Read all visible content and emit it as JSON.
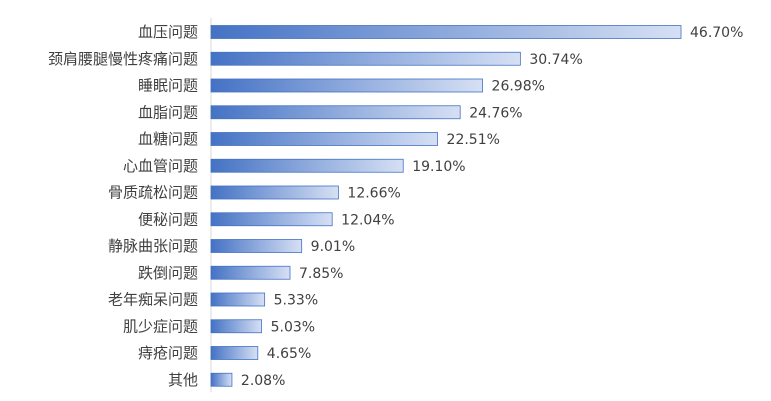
{
  "chart_data": {
    "type": "bar",
    "orientation": "horizontal",
    "title": "",
    "xlabel": "",
    "ylabel": "",
    "xlim": [
      0,
      50
    ],
    "grid": false,
    "legend": "none",
    "categories": [
      "血压问题",
      "颈肩腰腿慢性疼痛问题",
      "睡眠问题",
      "血脂问题",
      "血糖问题",
      "心血管问题",
      "骨质疏松问题",
      "便秘问题",
      "静脉曲张问题",
      "跌倒问题",
      "老年痴呆问题",
      "肌少症问题",
      "痔疮问题",
      "其他"
    ],
    "values": [
      46.7,
      30.74,
      26.98,
      24.76,
      22.51,
      19.1,
      12.66,
      12.04,
      9.01,
      7.85,
      5.33,
      5.03,
      4.65,
      2.08
    ],
    "value_labels": [
      "46.70%",
      "30.74%",
      "26.98%",
      "24.76%",
      "22.51%",
      "19.10%",
      "12.66%",
      "12.04%",
      "9.01%",
      "7.85%",
      "5.33%",
      "5.03%",
      "4.65%",
      "2.08%"
    ],
    "colors": {
      "bar_start": "#4472c4",
      "bar_end": "#d6e0f4",
      "bar_stroke": "#4472c4",
      "axis": "#d9d9d9",
      "text": "#404040"
    }
  }
}
